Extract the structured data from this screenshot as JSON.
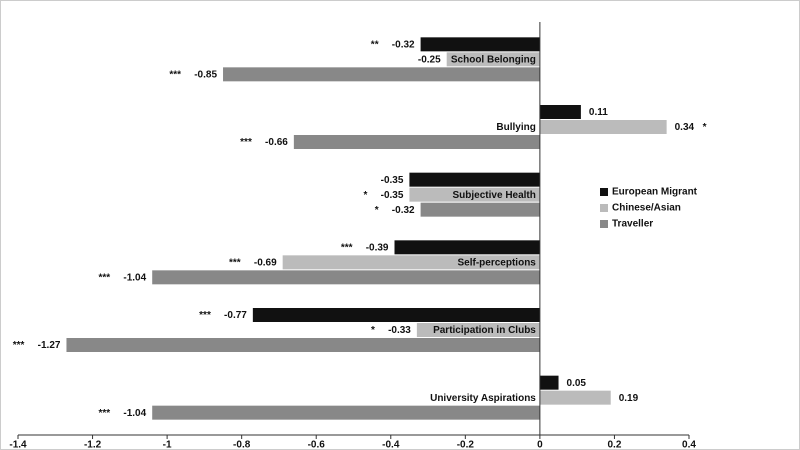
{
  "chart_data": {
    "type": "bar",
    "orientation": "horizontal",
    "categories": [
      "School Belonging",
      "Bullying",
      "Subjective Health",
      "Self-perceptions",
      "Participation in Clubs",
      "University Aspirations"
    ],
    "series": [
      {
        "name": "European Migrant",
        "color": "#111111",
        "values": [
          -0.32,
          0.11,
          -0.35,
          -0.39,
          -0.77,
          0.05
        ],
        "significance": [
          "**",
          null,
          null,
          "***",
          "***",
          null
        ]
      },
      {
        "name": "Chinese/Asian",
        "color": "#bbbbbb",
        "values": [
          -0.25,
          0.34,
          -0.35,
          -0.69,
          -0.33,
          0.19
        ],
        "significance": [
          null,
          "*",
          "*",
          "***",
          "*",
          null
        ]
      },
      {
        "name": "Traveller",
        "color": "#888888",
        "values": [
          -0.85,
          -0.66,
          -0.32,
          -1.04,
          -1.27,
          -1.04
        ],
        "significance": [
          "***",
          "***",
          "*",
          "***",
          "***",
          "***"
        ]
      }
    ],
    "xlim": [
      -1.4,
      0.4
    ],
    "xticks": [
      -1.4,
      -1.2,
      -1,
      -0.8,
      -0.6,
      -0.4,
      -0.2,
      0,
      0.2,
      0.4
    ],
    "legend": "right"
  }
}
